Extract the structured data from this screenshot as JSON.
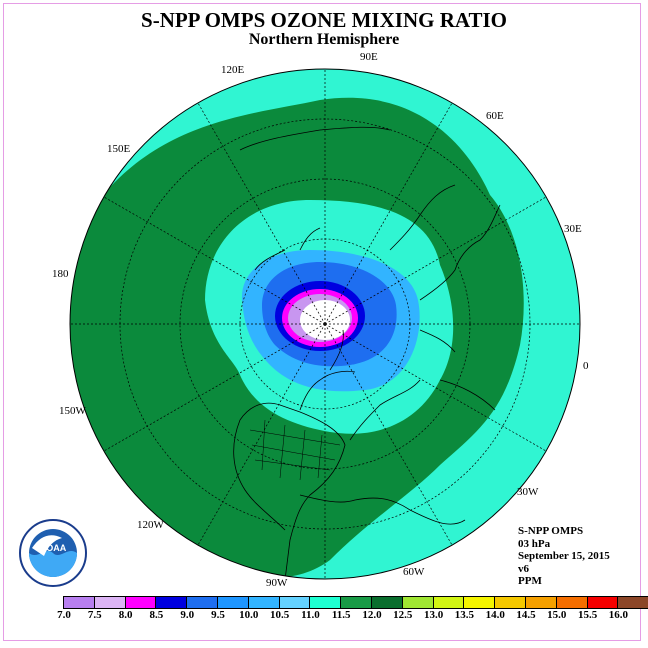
{
  "title": "S-NPP OMPS OZONE MIXING RATIO",
  "subtitle": "Northern Hemisphere",
  "longitude_labels": [
    {
      "name": "lon-label-90e",
      "text": "90E"
    },
    {
      "name": "lon-label-60e",
      "text": "60E"
    },
    {
      "name": "lon-label-30e",
      "text": "30E"
    },
    {
      "name": "lon-label-0",
      "text": "0"
    },
    {
      "name": "lon-label-30w",
      "text": "30W"
    },
    {
      "name": "lon-label-60w",
      "text": "60W"
    },
    {
      "name": "lon-label-90w",
      "text": "90W"
    },
    {
      "name": "lon-label-120w",
      "text": "120W"
    },
    {
      "name": "lon-label-150w",
      "text": "150W"
    },
    {
      "name": "lon-label-180",
      "text": "180"
    },
    {
      "name": "lon-label-150e",
      "text": "150E"
    },
    {
      "name": "lon-label-120e",
      "text": "120E"
    }
  ],
  "info": {
    "instrument": "S-NPP OMPS",
    "level": "03 hPa",
    "date": "September 15, 2015",
    "version": "v6",
    "units": "PPM"
  },
  "logo": {
    "text": "NOAA",
    "icon": "noaa-logo-icon"
  },
  "colorbar": {
    "ticks": [
      "7.0",
      "7.5",
      "8.0",
      "8.5",
      "9.0",
      "9.5",
      "10.0",
      "10.5",
      "11.0",
      "11.5",
      "12.0",
      "12.5",
      "13.0",
      "13.5",
      "14.0",
      "14.5",
      "15.0",
      "15.5",
      "16.0"
    ],
    "colors": [
      "#b87ff0",
      "#dcb4f5",
      "#ff00ff",
      "#0000e0",
      "#1e6ef0",
      "#1e96ff",
      "#32b4ff",
      "#64d2ff",
      "#1effd2",
      "#199b46",
      "#0a6e2d",
      "#a0e632",
      "#d2f514",
      "#f5f500",
      "#f5c800",
      "#f5a000",
      "#f56e00",
      "#f50000",
      "#8c4628"
    ]
  },
  "map": {
    "colors": {
      "ocean_outer": "#30f5d2",
      "green_band": "#0b8a3c",
      "inner_teal": "#30f5d2",
      "light_blue": "#32b4ff",
      "blue": "#1e6ef0",
      "deep_blue": "#0000e0",
      "magenta": "#ff00ff",
      "lavender": "#c896f0",
      "center": "#ffffff"
    }
  }
}
